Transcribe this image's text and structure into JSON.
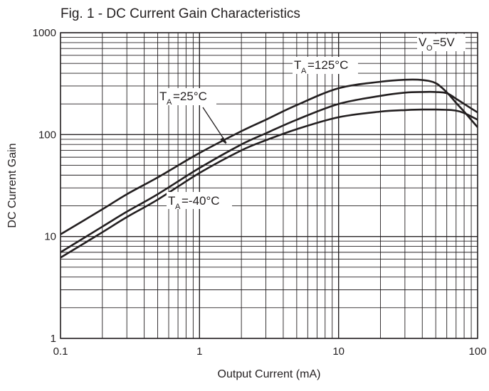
{
  "chart_data": {
    "type": "line",
    "title": "Fig. 1 - DC Current Gain Characteristics",
    "xlabel": "Output Current (mA)",
    "ylabel": "DC Current Gain",
    "xscale": "log",
    "yscale": "log",
    "xlim": [
      0.1,
      100
    ],
    "ylim": [
      1,
      1000
    ],
    "grid": true,
    "x_tick_labels": [
      "0.1",
      "1",
      "10",
      "100"
    ],
    "y_tick_labels": [
      "1",
      "10",
      "100",
      "1000"
    ],
    "annotations": {
      "ta125": {
        "main": "T",
        "sub": "A",
        "rest": "=125°C"
      },
      "ta25": {
        "main": "T",
        "sub": "A",
        "rest": "=25°C"
      },
      "tam40": {
        "main": "T",
        "sub": "A",
        "rest": "=-40°C"
      },
      "vo": {
        "main": "V",
        "sub": "O",
        "rest": "=5V"
      }
    },
    "series": [
      {
        "name": "TA=125°C",
        "x": [
          0.1,
          0.2,
          0.3,
          0.5,
          1,
          2,
          3,
          5,
          10,
          20,
          30,
          40,
          50,
          60,
          70,
          80,
          100
        ],
        "y": [
          10.5,
          18.5,
          26,
          38,
          66,
          108,
          140,
          195,
          285,
          330,
          345,
          343,
          320,
          260,
          205,
          168,
          118
        ]
      },
      {
        "name": "TA=25°C",
        "x": [
          0.1,
          0.2,
          0.3,
          0.5,
          1,
          2,
          3,
          5,
          10,
          20,
          30,
          40,
          50,
          60,
          70,
          80,
          100
        ],
        "y": [
          7,
          12.5,
          17.5,
          26,
          47,
          80,
          103,
          140,
          200,
          240,
          258,
          262,
          262,
          255,
          225,
          200,
          165
        ]
      },
      {
        "name": "TA=-40°C",
        "x": [
          0.1,
          0.2,
          0.3,
          0.5,
          1,
          2,
          3,
          5,
          10,
          20,
          30,
          40,
          50,
          60,
          70,
          80,
          100
        ],
        "y": [
          6.2,
          11,
          15.5,
          23,
          42,
          70,
          88,
          113,
          148,
          168,
          174,
          176,
          176,
          175,
          172,
          163,
          140
        ]
      }
    ],
    "colors": {
      "line": "#231f20",
      "grid": "#231f20"
    }
  }
}
